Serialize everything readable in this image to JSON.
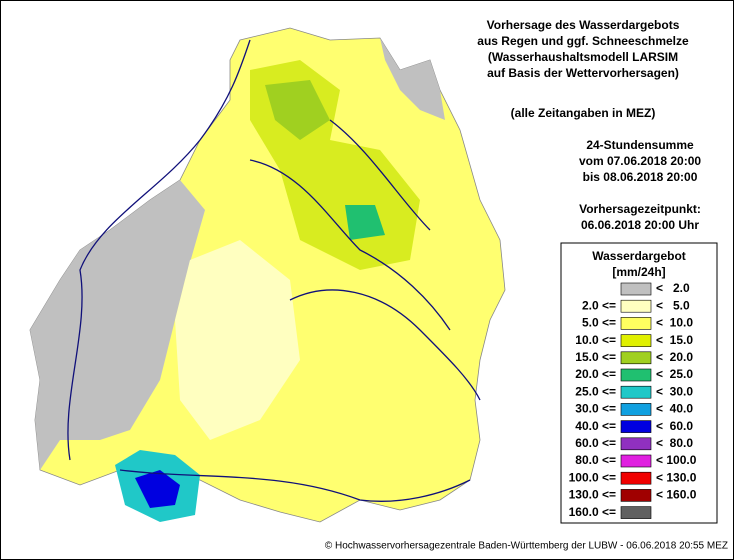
{
  "header": {
    "lines": [
      "Vorhersage des Wasserdargebots",
      "aus Regen und ggf. Schneeschmelze",
      "(Wasserhaushaltsmodell LARSIM",
      "auf Basis der Wettervorhersagen)"
    ],
    "timezone": "(alle Zeitangaben in MEZ)",
    "period": [
      "24-Stundensumme",
      "vom 07.06.2018 20:00",
      "bis 08.06.2018 20:00"
    ],
    "forecast": [
      "Vorhersagezeitpunkt:",
      "06.06.2018 20:00 Uhr"
    ]
  },
  "legend": {
    "title": "Wasserdargebot",
    "unit": "[mm/24h]",
    "rows": [
      {
        "color": "#c0c0c0",
        "upper": "<   2.0"
      },
      {
        "lower": "2.0 <=",
        "color": "#ffffc0",
        "upper": "<   5.0"
      },
      {
        "lower": "5.0 <=",
        "color": "#ffff60",
        "upper": "<  10.0"
      },
      {
        "lower": "10.0 <=",
        "color": "#e0f000",
        "upper": "<  15.0"
      },
      {
        "lower": "15.0 <=",
        "color": "#a0d020",
        "upper": "<  20.0"
      },
      {
        "lower": "20.0 <=",
        "color": "#20c070",
        "upper": "<  25.0"
      },
      {
        "lower": "25.0 <=",
        "color": "#20c8c8",
        "upper": "<  30.0"
      },
      {
        "lower": "30.0 <=",
        "color": "#10a0e0",
        "upper": "<  40.0"
      },
      {
        "lower": "40.0 <=",
        "color": "#0000e0",
        "upper": "<  60.0"
      },
      {
        "lower": "60.0 <=",
        "color": "#9030c0",
        "upper": "<  80.0"
      },
      {
        "lower": "80.0 <=",
        "color": "#e020e0",
        "upper": "< 100.0"
      },
      {
        "lower": "100.0 <=",
        "color": "#f00000",
        "upper": "< 130.0"
      },
      {
        "lower": "130.0 <=",
        "color": "#a00000",
        "upper": "< 160.0"
      },
      {
        "lower": "160.0 <=",
        "color": "#606060"
      }
    ]
  },
  "footer": "© Hochwasservorhersagezentrale Baden-Württemberg der LUBW - 06.06.2018 20:55 MEZ"
}
